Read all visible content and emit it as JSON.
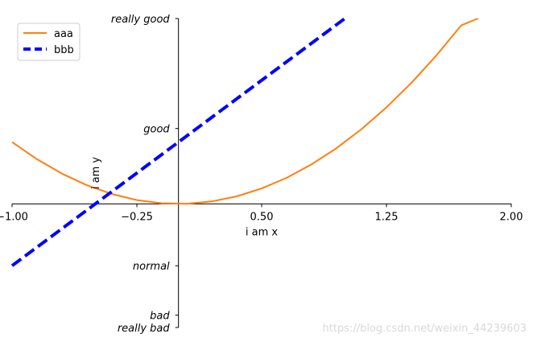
{
  "chart_data": {
    "type": "line",
    "title": "",
    "xlabel": "i am x",
    "ylabel": "i am y",
    "xlim": [
      -1,
      2
    ],
    "ylim": [
      -2,
      3
    ],
    "xticks": [
      {
        "value": -1.0,
        "label": "-1.00"
      },
      {
        "value": -0.25,
        "label": "-0.25"
      },
      {
        "value": 0.5,
        "label": "0.50"
      },
      {
        "value": 1.25,
        "label": "1.25"
      },
      {
        "value": 2.0,
        "label": "2.00"
      }
    ],
    "yticks": [
      {
        "value": -2.0,
        "label": "really bad"
      },
      {
        "value": -1.8,
        "label": "bad"
      },
      {
        "value": -1.0,
        "label": "normal"
      },
      {
        "value": 1.22,
        "label": "good"
      },
      {
        "value": 3.0,
        "label": "really good"
      }
    ],
    "spines": "centered at origin (left and bottom only)",
    "legend": "top-left",
    "series": [
      {
        "name": "aaa",
        "color": "#ff7f0e",
        "style": "solid",
        "x": [
          -1.0,
          -0.85,
          -0.7,
          -0.55,
          -0.4,
          -0.25,
          -0.1,
          0.05,
          0.2,
          0.35,
          0.5,
          0.65,
          0.8,
          0.95,
          1.1,
          1.25,
          1.4,
          1.55,
          1.7,
          1.8
        ],
        "y": [
          1.0,
          0.7225,
          0.49,
          0.3025,
          0.16,
          0.0625,
          0.01,
          0.0025,
          0.04,
          0.1225,
          0.25,
          0.4225,
          0.64,
          0.9025,
          1.21,
          1.5625,
          1.96,
          2.4025,
          2.89,
          3.0
        ]
      },
      {
        "name": "bbb",
        "color": "#0000ff",
        "style": "dashed",
        "x": [
          -1.0,
          1.0
        ],
        "y": [
          -1.0,
          3.0
        ]
      }
    ]
  },
  "watermark": "https://blog.csdn.net/weixin_44239603"
}
